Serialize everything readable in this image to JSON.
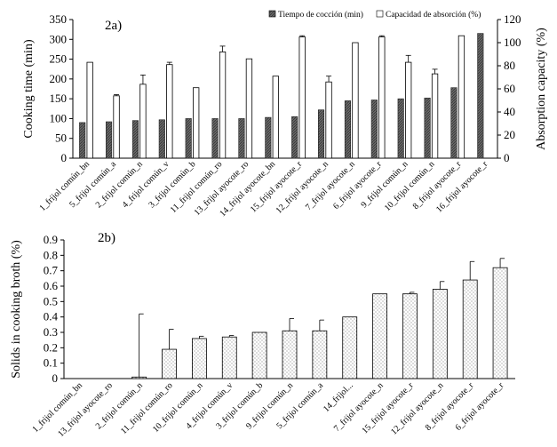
{
  "chart_data": [
    {
      "type": "bar",
      "panel_label": "2a)",
      "ylabel": "Cooking time (min)",
      "y2label": "Absorption capacity (%)",
      "ylim": [
        0,
        350
      ],
      "y_ticks": [
        0,
        50,
        100,
        150,
        200,
        250,
        300,
        350
      ],
      "y2lim": [
        0,
        120
      ],
      "y2_ticks": [
        0,
        20,
        40,
        60,
        80,
        100,
        120
      ],
      "legend_position": "top-right",
      "categories": [
        "1_frijol común_bn",
        "5_frijol común_a",
        "2_frijol común_n",
        "4_frijol común_v",
        "3_frijol común_b",
        "11_frijol común_ro",
        "13_frijol ayocote_ro",
        "14_frijol ayocote_bn",
        "15_frijol ayocote_r",
        "12_frijol ayocote_n",
        "7_frijol ayocote_n",
        "6_frijol ayocote_r",
        "9_frijol común_n",
        "10_frijol común_n",
        "8_frijol ayocote_r",
        "16_frijol ayocote_r"
      ],
      "series": [
        {
          "name": "Tiempo de cocción  (min)",
          "axis": "left",
          "color": "#555555",
          "pattern": "hatch",
          "values": [
            90,
            92,
            95,
            97,
            100,
            100,
            100,
            103,
            105,
            122,
            145,
            147,
            150,
            152,
            178,
            315
          ]
        },
        {
          "name": "Capacidad de absorción (%)",
          "axis": "right",
          "color": "#ffffff",
          "values": [
            83,
            54,
            64,
            81,
            61,
            92,
            86,
            71,
            105,
            66,
            100,
            105,
            83,
            73,
            106,
            null
          ],
          "errors": [
            0,
            1,
            8,
            2,
            0,
            5,
            0,
            0,
            1,
            5,
            0,
            1,
            6,
            4,
            0,
            0
          ]
        }
      ]
    },
    {
      "type": "bar",
      "panel_label": "2b)",
      "ylabel": "Solids in cooking broth (%)",
      "ylim": [
        0,
        0.9
      ],
      "y_ticks": [
        "0",
        "0.1",
        "0.2",
        "0.3",
        "0.4",
        "0.5",
        "0.6",
        "0.7",
        "0.8",
        "0.9"
      ],
      "categories": [
        "1_frijol común_bn",
        "13_frijol ayocote_ro",
        "2_frijol común_n",
        "11_frijol común_ro",
        "10_frijol común_n",
        "4_frijol común_v",
        "3_frijol común_b",
        "9_frijol común_n",
        "5_frijol común_a",
        "14_frijol...",
        "7_frijol ayocote_n",
        "15_frijol ayocote_r",
        "12_frijol ayocote_n",
        "8_frijol ayocote_r",
        "6_frijol ayocote_r"
      ],
      "series": [
        {
          "name": "Solids in cooking broth (%)",
          "color": "#ffffff",
          "pattern": "dots",
          "values": [
            0,
            0,
            0.01,
            0.19,
            0.26,
            0.27,
            0.3,
            0.31,
            0.31,
            0.4,
            0.55,
            0.55,
            0.58,
            0.64,
            0.72
          ],
          "errors": [
            0,
            0,
            0.41,
            0.13,
            0.015,
            0.01,
            0,
            0.08,
            0.07,
            0,
            0,
            0.01,
            0.05,
            0.12,
            0.06
          ]
        }
      ]
    }
  ]
}
